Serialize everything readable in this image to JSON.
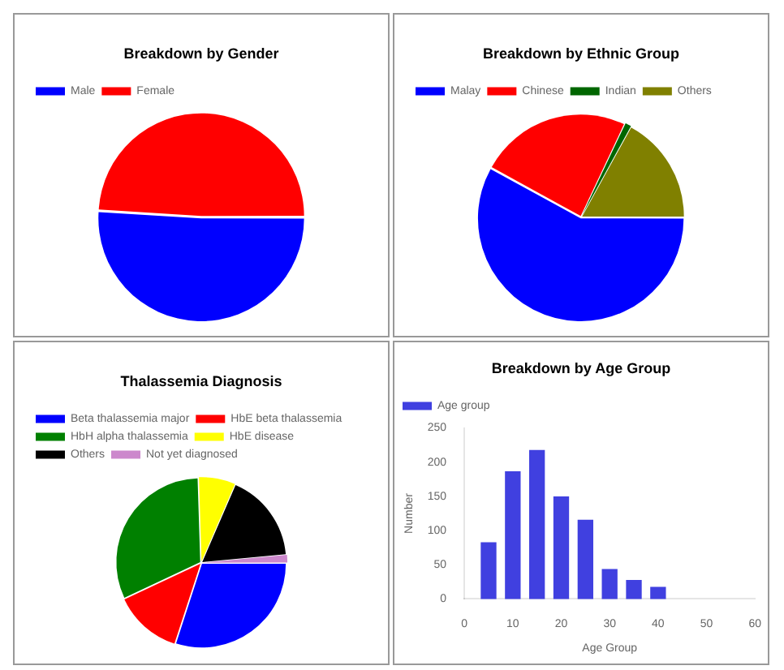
{
  "chart_data": [
    {
      "type": "pie",
      "title": "Breakdown by Gender",
      "categories": [
        "Male",
        "Female"
      ],
      "values": [
        51,
        49
      ],
      "colors": [
        "#0000ff",
        "#ff0000"
      ],
      "legend": "top left"
    },
    {
      "type": "pie",
      "title": "Breakdown by Ethnic Group",
      "categories": [
        "Malay",
        "Chinese",
        "Indian",
        "Others"
      ],
      "values": [
        58,
        24,
        1,
        17
      ],
      "colors": [
        "#0000ff",
        "#ff0000",
        "#006600",
        "#808000"
      ],
      "legend": "top left"
    },
    {
      "type": "pie",
      "title": "Thalassemia Diagnosis",
      "categories": [
        "Beta thalassemia major",
        "HbE beta thalassemia",
        "HbH alpha thalassemia",
        "HbE disease",
        "Others",
        "Not yet diagnosed"
      ],
      "values": [
        30,
        13,
        31.5,
        7,
        17,
        1.5
      ],
      "colors": [
        "#0000ff",
        "#ff0000",
        "#008000",
        "#ffff00",
        "#000000",
        "#cc88cc"
      ],
      "legend": "top left"
    },
    {
      "type": "bar",
      "title": "Breakdown by Age Group",
      "x": [
        5,
        10,
        15,
        20,
        25,
        30,
        35,
        40
      ],
      "xlim": [
        0,
        60
      ],
      "xticks": [
        0,
        10,
        20,
        30,
        40,
        50,
        60
      ],
      "ylim": [
        0,
        250
      ],
      "yticks": [
        0,
        50,
        100,
        150,
        200,
        250
      ],
      "xlabel": "Age Group",
      "ylabel": "Number",
      "legend": "top left",
      "series": [
        {
          "name": "Age group",
          "color": "#4040e0",
          "values": [
            82,
            186,
            217,
            149,
            115,
            43,
            27,
            17
          ]
        }
      ]
    }
  ]
}
